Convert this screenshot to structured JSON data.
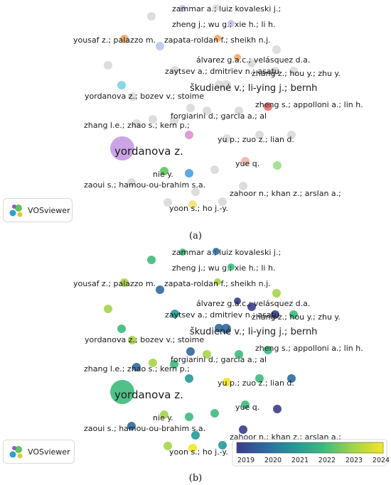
{
  "panels": [
    {
      "caption": "(a)",
      "logo_text": "VOSviewer",
      "labels": [
        "zammar a.; luiz kovaleski j.;",
        "zheng j.; wu g.; xie h.; li h.",
        "yousaf z.; palazzo m.",
        "zapata-roldan f.; sheikh n.j.",
        "álvarez g.a.c.; velásquez d.a.",
        "zaytsev a.; dmitriev n.; asatu",
        "zhang z.; hou y.; zhu y.",
        "škudienė v.; li-ying j.; bernh",
        "yordanova z.; bozev v.; stoime",
        "zheng s.; appolloni a.; lin h.",
        "forgiarini d.; garcia a.; al",
        "zhang l.e.; zhao s.; kern p.;",
        "yu p.; zuo z.; lian d.",
        "yordanova z.",
        "yue q.",
        "nie y.",
        "zaoui s.; hamou-ou-brahim s.a.",
        "zahoor n.; khan z.; arslan a.;",
        "yoon s.; ho j.-y."
      ],
      "node_colors": [
        "#d9d9d9",
        "#ccc0e8",
        "#c59ae3",
        "#f0a968",
        "#e6a6a0",
        "#b8c8f0",
        "#7dd1e0",
        "#ec6e6e",
        "#de8fd8",
        "#f3b2b2",
        "#9be08a",
        "#4e9ee3",
        "#5fc45a",
        "#f1e27a"
      ]
    },
    {
      "caption": "(b)",
      "logo_text": "VOSviewer",
      "labels": [
        "zammar a.; luiz kovaleski j.;",
        "zheng j.; wu g.; xie h.; li h.",
        "yousaf z.; palazzo m.",
        "zapata-roldan f.; sheikh n.j.",
        "álvarez g.a.c.; velásquez d.a.",
        "zaytsev a.; dmitriev n.; asatu",
        "zhang z.; hou y.; zhu y.",
        "škudienė v.; li-ying j.; bernh",
        "yordanova z.; bozev v.; stoime",
        "zheng s.; appolloni a.; lin h.",
        "forgiarini d.; garcia a.; al",
        "zhang l.e.; zhao s.; kern p.;",
        "yu p.; zuo z.; lian d.",
        "yordanova z.",
        "yue q.",
        "nie y.",
        "zaoui s.; hamou-ou-brahim s.a.",
        "zahoor n.; khan z.; arslan a.;",
        "yoon s.; ho j.-y."
      ],
      "colorbar": {
        "ticks": [
          "2019",
          "2020",
          "2021",
          "2022",
          "2023",
          "2024"
        ],
        "colors": [
          "#3b3d8c",
          "#2f6a9e",
          "#239a97",
          "#3dbb7c",
          "#a6d44a",
          "#f2e527"
        ]
      }
    }
  ]
}
